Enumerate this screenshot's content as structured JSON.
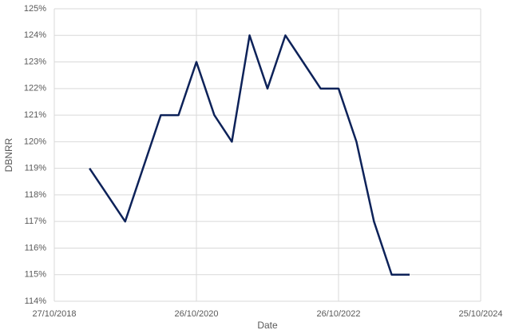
{
  "chart_data": {
    "type": "line",
    "x_label": "Date",
    "y_label": "DBNRR",
    "x": [
      "26/04/2019",
      "26/10/2019",
      "26/04/2020",
      "26/07/2020",
      "26/10/2020",
      "26/01/2021",
      "26/04/2021",
      "26/07/2021",
      "26/10/2021",
      "26/01/2022",
      "26/07/2022",
      "26/10/2022",
      "26/01/2023",
      "26/04/2023",
      "26/07/2023",
      "26/10/2023"
    ],
    "series": [
      {
        "name": "DBNRR",
        "color": "#0d2259",
        "values": [
          119,
          117,
          121,
          121,
          123,
          121,
          120,
          124,
          122,
          124,
          122,
          122,
          120,
          117,
          115,
          115
        ]
      }
    ],
    "xlim": [
      "27/10/2018",
      "25/10/2024"
    ],
    "xticks": [
      "27/10/2018",
      "26/10/2020",
      "26/10/2022",
      "25/10/2024"
    ],
    "ylim": [
      114,
      125
    ],
    "yticks": [
      {
        "value": 114,
        "label": "114%"
      },
      {
        "value": 115,
        "label": "115%"
      },
      {
        "value": 116,
        "label": "116%"
      },
      {
        "value": 117,
        "label": "117%"
      },
      {
        "value": 118,
        "label": "118%"
      },
      {
        "value": 119,
        "label": "119%"
      },
      {
        "value": 120,
        "label": "120%"
      },
      {
        "value": 121,
        "label": "121%"
      },
      {
        "value": 122,
        "label": "122%"
      },
      {
        "value": 123,
        "label": "123%"
      },
      {
        "value": 124,
        "label": "124%"
      },
      {
        "value": 125,
        "label": "125%"
      }
    ],
    "grid": true
  }
}
